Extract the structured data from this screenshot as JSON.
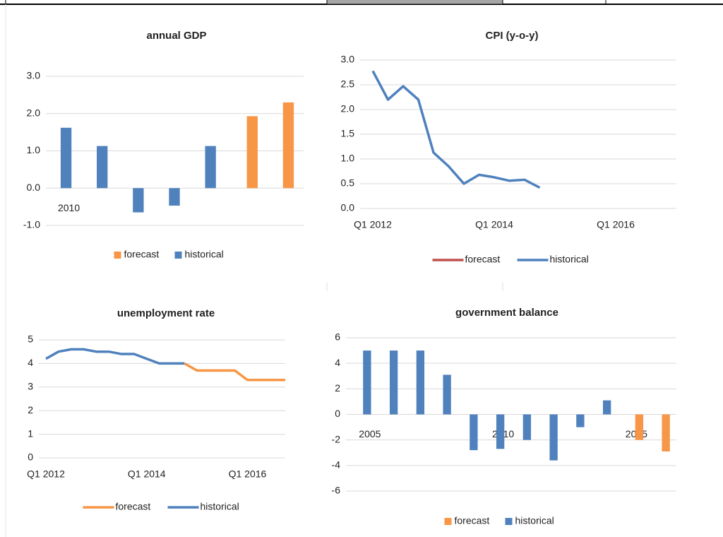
{
  "chart_data": [
    {
      "type": "bar",
      "title": "annual GDP",
      "categories": [
        "2010",
        null,
        null,
        null,
        null,
        null,
        null
      ],
      "series": [
        {
          "name": "forecast",
          "color": "#f79646",
          "values": [
            null,
            null,
            null,
            null,
            null,
            1.93,
            2.3
          ]
        },
        {
          "name": "historical",
          "color": "#4f81bd",
          "values": [
            1.62,
            1.13,
            -0.65,
            -0.47,
            1.13,
            null,
            null
          ]
        }
      ],
      "ylim": [
        -1,
        3
      ],
      "yticks": [
        {
          "value": -1,
          "label": "-1.0"
        },
        {
          "value": 0,
          "label": "0.0"
        },
        {
          "value": 1,
          "label": "1.0"
        },
        {
          "value": 2,
          "label": "2.0"
        },
        {
          "value": 3,
          "label": "3.0"
        }
      ],
      "grid": true,
      "legend": "bottom"
    },
    {
      "type": "line",
      "title": "CPI (y-o-y)",
      "categories": [
        "Q1 2012",
        null,
        null,
        null,
        null,
        null,
        null,
        null,
        "Q1 2014",
        null,
        null,
        null,
        null,
        null,
        null,
        null,
        "Q1 2016",
        null,
        null,
        null,
        null
      ],
      "series": [
        {
          "name": "forecast",
          "color": "#c0504d",
          "values": [
            null,
            null,
            null,
            null,
            null,
            null,
            null,
            null,
            null,
            null,
            null,
            null,
            null,
            null,
            null,
            null,
            null,
            null,
            null,
            null,
            null
          ]
        },
        {
          "name": "historical",
          "color": "#4f81bd",
          "values": [
            2.78,
            2.2,
            2.47,
            2.2,
            1.13,
            0.85,
            0.5,
            0.68,
            0.63,
            0.56,
            0.58,
            0.42,
            null,
            null,
            null,
            null,
            null,
            null,
            null,
            null,
            null
          ]
        }
      ],
      "ylim": [
        0,
        3
      ],
      "yticks": [
        {
          "value": 0,
          "label": "0.0"
        },
        0.5,
        {
          "value": 1,
          "label": "1.0"
        },
        1.5,
        {
          "value": 2,
          "label": "2.0"
        },
        2.5,
        {
          "value": 3,
          "label": "3.0"
        }
      ],
      "grid": true,
      "legend": "bottom"
    },
    {
      "type": "line",
      "title": "unemployment rate",
      "categories": [
        "Q1 2012",
        null,
        null,
        null,
        null,
        null,
        null,
        null,
        "Q1 2014",
        null,
        null,
        null,
        null,
        null,
        null,
        null,
        "Q1 2016",
        null,
        null,
        null
      ],
      "series": [
        {
          "name": "forecast",
          "color": "#f79646",
          "values": [
            null,
            null,
            null,
            null,
            null,
            null,
            null,
            null,
            null,
            null,
            null,
            4.0,
            3.7,
            3.7,
            3.7,
            3.7,
            3.3,
            3.3,
            3.3,
            3.3
          ]
        },
        {
          "name": "historical",
          "color": "#4f81bd",
          "values": [
            4.2,
            4.5,
            4.6,
            4.6,
            4.5,
            4.5,
            4.4,
            4.4,
            4.2,
            4.0,
            4.0,
            4.0,
            null,
            null,
            null,
            null,
            null,
            null,
            null,
            null
          ]
        }
      ],
      "ylim": [
        0,
        5
      ],
      "yticks": [
        0,
        1,
        2,
        3,
        4,
        5
      ],
      "grid": true,
      "legend": "bottom"
    },
    {
      "type": "bar",
      "title": "government balance",
      "categories": [
        "2005",
        null,
        null,
        null,
        null,
        "2010",
        null,
        null,
        null,
        null,
        "2015",
        null
      ],
      "series": [
        {
          "name": "forecast",
          "color": "#f79646",
          "values": [
            null,
            null,
            null,
            null,
            null,
            null,
            null,
            null,
            null,
            null,
            -2.0,
            -2.9
          ]
        },
        {
          "name": "historical",
          "color": "#4f81bd",
          "values": [
            5.0,
            5.0,
            5.0,
            3.1,
            -2.8,
            -2.7,
            -2.0,
            -3.6,
            -1.0,
            1.1,
            null,
            null
          ]
        }
      ],
      "ylim": [
        -6,
        6
      ],
      "yticks": [
        -6,
        -4,
        -2,
        0,
        2,
        4,
        6
      ],
      "grid": true,
      "legend": "bottom"
    }
  ]
}
